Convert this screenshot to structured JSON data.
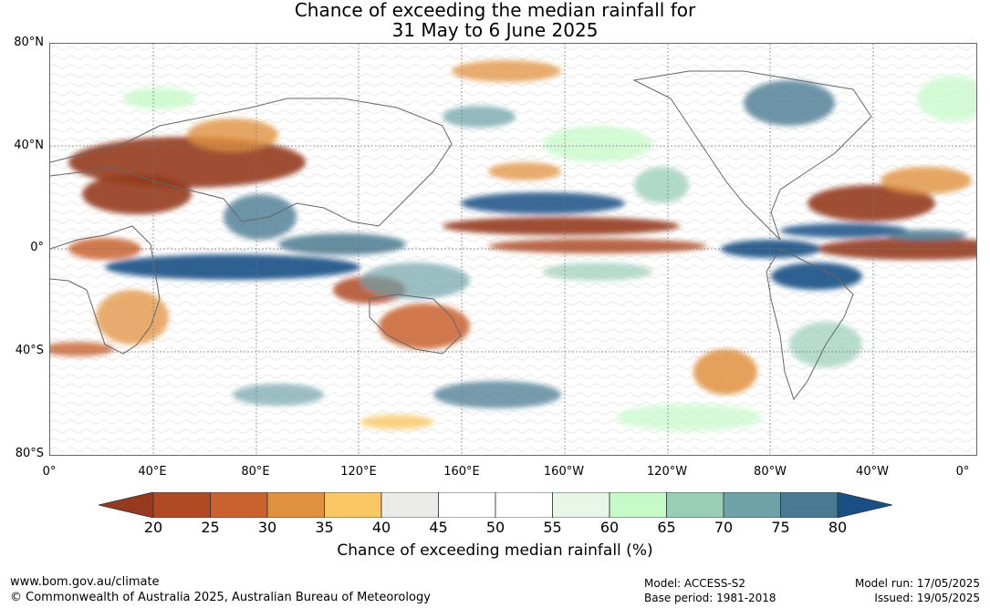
{
  "title": {
    "line1": "Chance of exceeding the median rainfall for",
    "line2": "31 May to 6 June 2025"
  },
  "map": {
    "lat_labels": [
      "80°N",
      "40°N",
      "0°",
      "40°S",
      "80°S"
    ],
    "lon_labels": [
      "0°",
      "40°E",
      "80°E",
      "120°E",
      "160°E",
      "160°W",
      "120°W",
      "80°W",
      "40°W",
      "0°"
    ]
  },
  "colorbar": {
    "ticks": [
      "20",
      "25",
      "30",
      "35",
      "40",
      "45",
      "50",
      "55",
      "60",
      "65",
      "70",
      "75",
      "80"
    ],
    "colors": [
      "#953a1f",
      "#b04a25",
      "#c9622e",
      "#e0913f",
      "#f9c764",
      "#ebebe9",
      "#ffffff",
      "#ffffff",
      "#e7f6e6",
      "#c6f9c8",
      "#98cdb6",
      "#6fa3a9",
      "#4a7a91",
      "#1a4f85"
    ],
    "label": "Chance of exceeding median rainfall (%)"
  },
  "footer": {
    "website": "www.bom.gov.au/climate",
    "copyright": "© Commonwealth of Australia 2025, Australian Bureau of Meteorology",
    "model": "Model: ACCESS-S2",
    "base_period": "Base period: 1981-2018",
    "model_run": "Model run: 17/05/2025",
    "issued": "Issued: 19/05/2025"
  }
}
